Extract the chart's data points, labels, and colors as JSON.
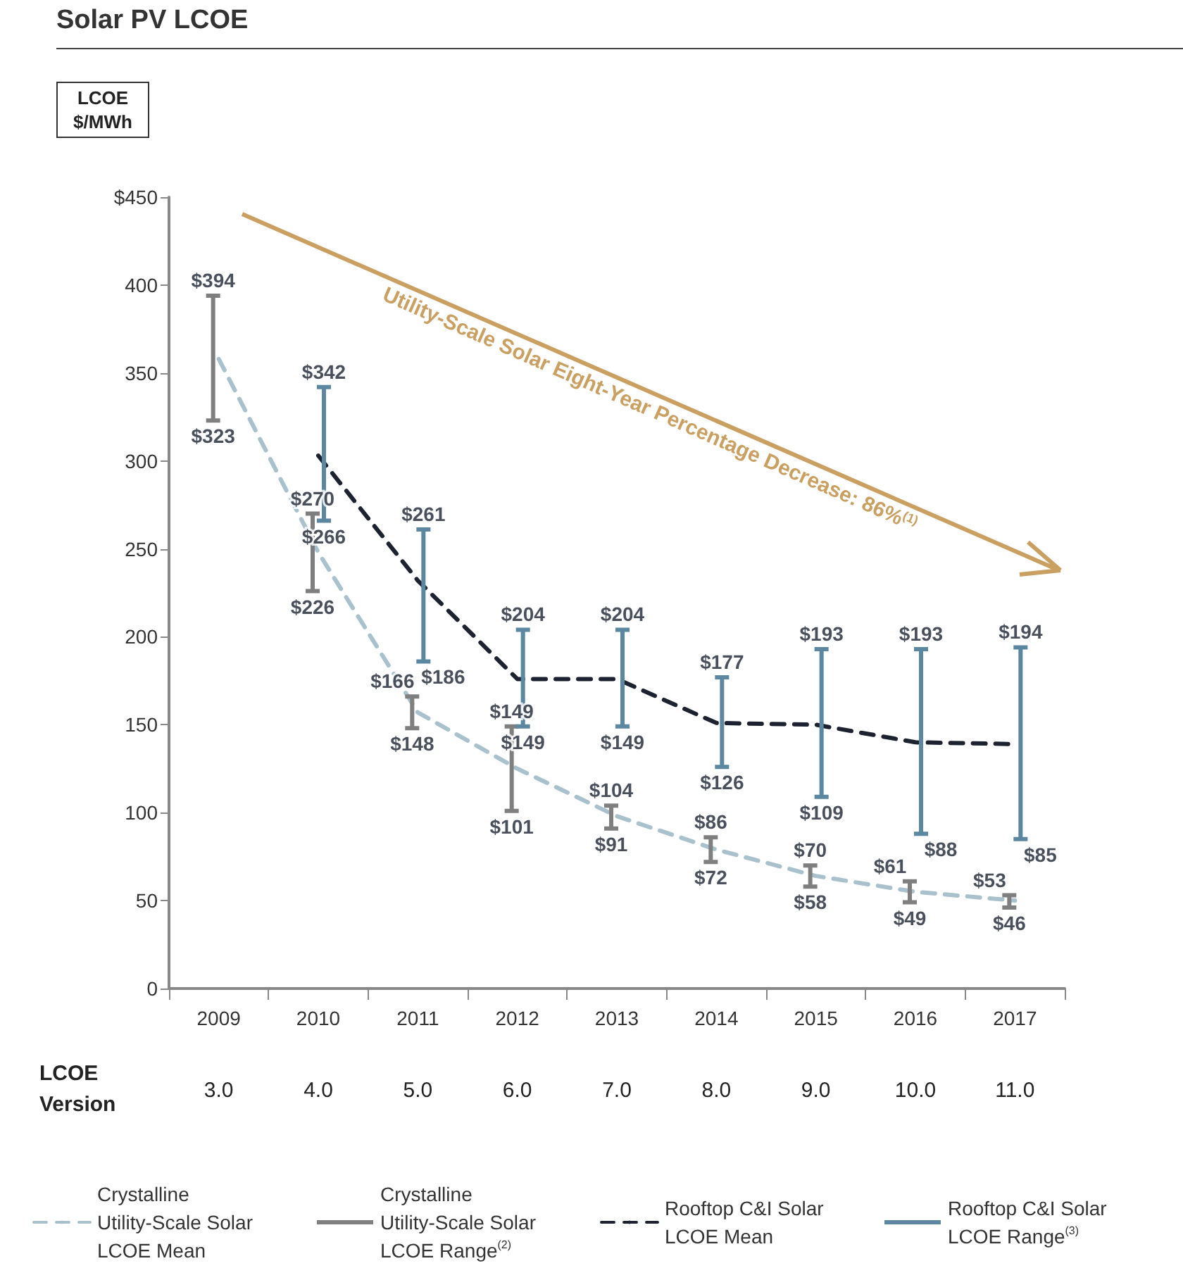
{
  "chart_data": {
    "type": "line",
    "title": "Solar PV LCOE",
    "ylabel": "LCOE $/MWh",
    "categories": [
      "2009",
      "2010",
      "2011",
      "2012",
      "2013",
      "2014",
      "2015",
      "2016",
      "2017"
    ],
    "series": [
      {
        "name": "Crystalline Utility-Scale Solar LCOE Mean",
        "color": "#a9c1cc",
        "line_style": "dashed",
        "values": [
          358,
          248,
          157,
          125,
          98,
          79,
          64,
          55,
          50
        ]
      },
      {
        "name": "Crystalline Utility-Scale Solar LCOE Range$^{(2)}$",
        "type": "bar",
        "color": "#7f7f7f",
        "base": [
          323,
          226,
          148,
          101,
          91,
          72,
          58,
          49,
          46
        ],
        "values": [
          71,
          44,
          18,
          48,
          13,
          14,
          12,
          12,
          7
        ]
      },
      {
        "name": "Rooftop C&I Solar LCOE Mean",
        "color": "#1c2230",
        "line_style": "dashed",
        "values": [
          null,
          303,
          232,
          176,
          176,
          151,
          150,
          140,
          139
        ]
      },
      {
        "name": "Rooftop C&I Solar LCOE Range$^{(3)}$",
        "type": "bar",
        "color": "#5b87a0",
        "base": [
          null,
          266,
          186,
          149,
          149,
          126,
          109,
          88,
          85
        ],
        "values": [
          null,
          76,
          75,
          55,
          55,
          51,
          84,
          105,
          109
        ]
      }
    ],
    "ylim": [
      0,
      450
    ],
    "yticks": [
      0,
      50,
      100,
      150,
      200,
      250,
      300,
      350,
      400,
      {
        "value": 450,
        "label": "$450"
      }
    ],
    "grid": false,
    "legend": "bottom",
    "annotations": [
      "Utility-Scale Solar Eight-Year Percentage Decrease: 86%$^{(1)}$",
      "LCOE Version",
      "3.0",
      "4.0",
      "5.0",
      "6.0",
      "7.0",
      "8.0",
      "9.0",
      "10.0",
      "11.0",
      {
        "text": "$394",
        "x": "2009",
        "y": 394
      },
      {
        "text": "$323",
        "x": "2009",
        "y": 323
      },
      {
        "text": "$270",
        "x": "2010",
        "y": 270
      },
      {
        "text": "$226",
        "x": "2010",
        "y": 226
      },
      {
        "text": "$166",
        "x": "2011",
        "y": 166
      },
      {
        "text": "$148",
        "x": "2011",
        "y": 148
      },
      {
        "text": "$149",
        "x": "2012",
        "y": 149
      },
      {
        "text": "$101",
        "x": "2012",
        "y": 101
      },
      {
        "text": "$104",
        "x": "2013",
        "y": 104
      },
      {
        "text": "$91",
        "x": "2013",
        "y": 91
      },
      {
        "text": "$86",
        "x": "2014",
        "y": 86
      },
      {
        "text": "$72",
        "x": "2014",
        "y": 72
      },
      {
        "text": "$70",
        "x": "2015",
        "y": 70
      },
      {
        "text": "$58",
        "x": "2015",
        "y": 58
      },
      {
        "text": "$61",
        "x": "2016",
        "y": 61
      },
      {
        "text": "$49",
        "x": "2016",
        "y": 49
      },
      {
        "text": "$53",
        "x": "2017",
        "y": 53
      },
      {
        "text": "$46",
        "x": "2017",
        "y": 46
      },
      {
        "text": "$342",
        "x": "2010",
        "y": 342
      },
      {
        "text": "$266",
        "x": "2010",
        "y": 266
      },
      {
        "text": "$261",
        "x": "2011",
        "y": 261
      },
      {
        "text": "$186",
        "x": "2011",
        "y": 186
      },
      {
        "text": "$204",
        "x": "2012",
        "y": 204
      },
      {
        "text": "$149",
        "x": "2012",
        "y": 149
      },
      {
        "text": "$204",
        "x": "2013",
        "y": 204
      },
      {
        "text": "$149",
        "x": "2013",
        "y": 149
      },
      {
        "text": "$177",
        "x": "2014",
        "y": 177
      },
      {
        "text": "$126",
        "x": "2014",
        "y": 126
      },
      {
        "text": "$193",
        "x": "2015",
        "y": 193
      },
      {
        "text": "$109",
        "x": "2015",
        "y": 109
      },
      {
        "text": "$193",
        "x": "2016",
        "y": 193
      },
      {
        "text": "$88",
        "x": "2016",
        "y": 88
      },
      {
        "text": "$194",
        "x": "2017",
        "y": 194
      },
      {
        "text": "$85",
        "x": "2017",
        "y": 85
      }
    ]
  }
}
